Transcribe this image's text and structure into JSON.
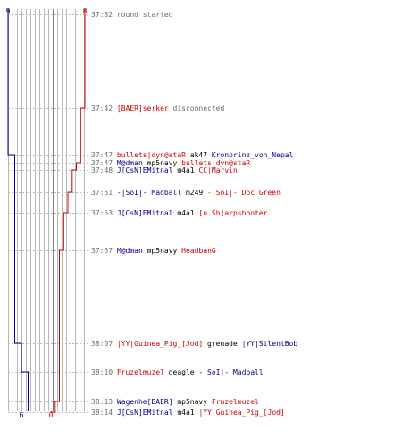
{
  "colors": {
    "blue": "#00008b",
    "red": "#cc0000",
    "gray_text": "#6b6b6b",
    "black": "#000000",
    "grid": "#b8b8b8",
    "grid_mid": "#7f7f7f"
  },
  "score": {
    "blue_start": "9",
    "red_start": "8",
    "blue_end": "6",
    "red_end": "0"
  },
  "events": [
    {
      "time": "37:32",
      "parts": [
        {
          "text": "round started",
          "color": "gray"
        }
      ]
    },
    {
      "time": "37:42",
      "parts": [
        {
          "text": "[BAER]serker",
          "color": "red"
        },
        {
          "text": " disconnected",
          "color": "gray"
        }
      ]
    },
    {
      "time": "37:47",
      "parts": [
        {
          "text": "bullets|dyn@staR",
          "color": "red"
        },
        {
          "text": " ak47 ",
          "color": "black"
        },
        {
          "text": "Kronprinz_von_Nepal",
          "color": "blue"
        }
      ]
    },
    {
      "time": "37:47",
      "parts": [
        {
          "text": "M@dman",
          "color": "blue"
        },
        {
          "text": " mp5navy ",
          "color": "black"
        },
        {
          "text": "bullets|dyn@staR",
          "color": "red"
        }
      ]
    },
    {
      "time": "37:48",
      "parts": [
        {
          "text": "J[CsN]EMitnal",
          "color": "blue"
        },
        {
          "text": " m4a1 ",
          "color": "black"
        },
        {
          "text": "CC|Marvin",
          "color": "red"
        }
      ]
    },
    {
      "time": "37:51",
      "parts": [
        {
          "text": "-|SoI|- Madball",
          "color": "blue"
        },
        {
          "text": " m249 ",
          "color": "black"
        },
        {
          "text": "-|SoI|- Doc Green",
          "color": "red"
        }
      ]
    },
    {
      "time": "37:53",
      "parts": [
        {
          "text": "J[CsN]EMitnal",
          "color": "blue"
        },
        {
          "text": " m4a1 ",
          "color": "black"
        },
        {
          "text": "[u.Sh]arpshooter",
          "color": "red"
        }
      ]
    },
    {
      "time": "37:57",
      "parts": [
        {
          "text": "M@dman",
          "color": "blue"
        },
        {
          "text": " mp5navy ",
          "color": "black"
        },
        {
          "text": "HeadbanG",
          "color": "red"
        }
      ]
    },
    {
      "time": "38:07",
      "parts": [
        {
          "text": "|YY|Guinea_Pig_[Jod]",
          "color": "red"
        },
        {
          "text": " grenade ",
          "color": "black"
        },
        {
          "text": "|YY|SilentBob",
          "color": "blue"
        }
      ]
    },
    {
      "time": "38:10",
      "parts": [
        {
          "text": "Fruzelmuzel",
          "color": "red"
        },
        {
          "text": " deagle ",
          "color": "black"
        },
        {
          "text": "-|SoI|- Madball",
          "color": "blue"
        }
      ]
    },
    {
      "time": "38:13",
      "parts": [
        {
          "text": "Wagenhe[BAER]",
          "color": "blue"
        },
        {
          "text": " mp5navy ",
          "color": "black"
        },
        {
          "text": "Fruzelmuzel",
          "color": "red"
        }
      ]
    },
    {
      "time": "38:14",
      "parts": [
        {
          "text": "J[CsN]EMitnal",
          "color": "blue"
        },
        {
          "text": " m4a1 ",
          "color": "black"
        },
        {
          "text": "|YY|Guinea_Pig_[Jod]",
          "color": "red"
        }
      ]
    }
  ],
  "alive_counts": [
    {
      "blue": 9,
      "red": 8
    },
    {
      "blue": 9,
      "red": 7
    },
    {
      "blue": 8,
      "red": 7
    },
    {
      "blue": 8,
      "red": 6
    },
    {
      "blue": 8,
      "red": 5
    },
    {
      "blue": 8,
      "red": 4
    },
    {
      "blue": 8,
      "red": 3
    },
    {
      "blue": 8,
      "red": 2
    },
    {
      "blue": 7,
      "red": 2
    },
    {
      "blue": 6,
      "red": 2
    },
    {
      "blue": 6,
      "red": 1
    },
    {
      "blue": 6,
      "red": 0
    }
  ]
}
